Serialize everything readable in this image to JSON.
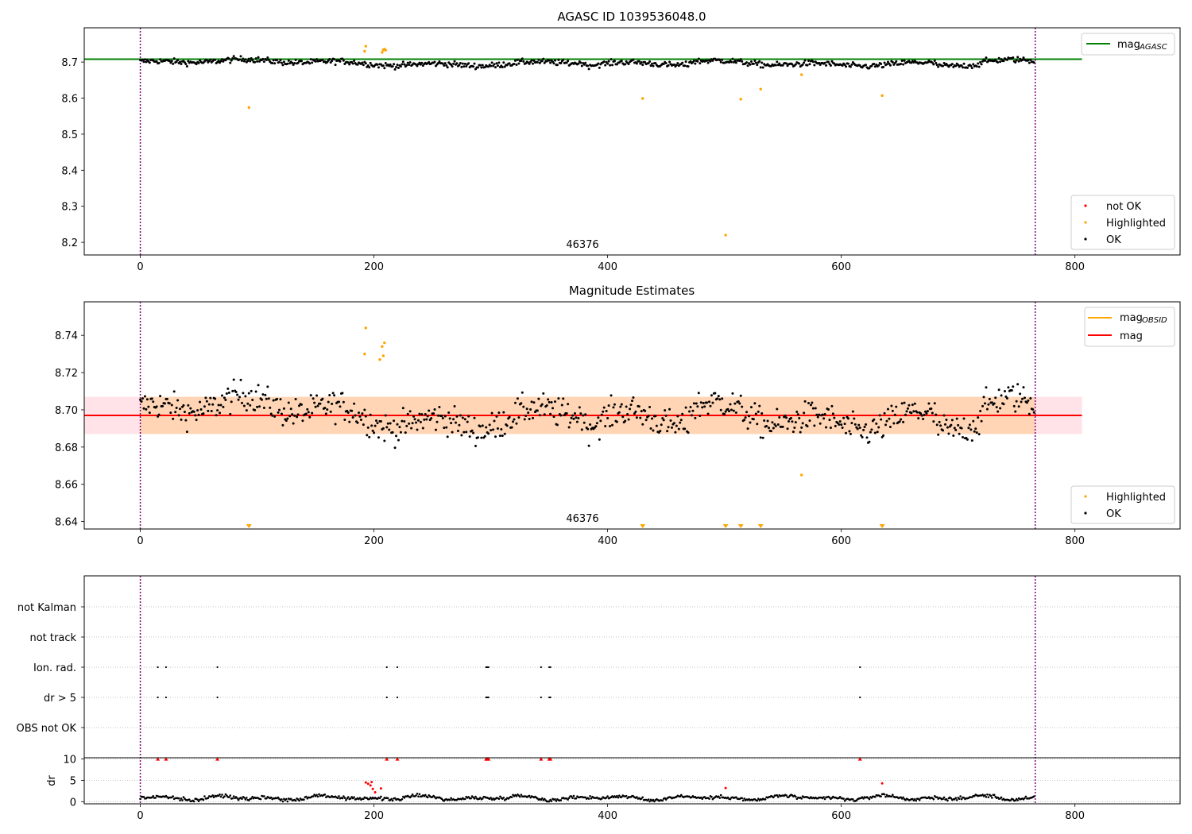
{
  "figure": {
    "obsid_label": "46376"
  },
  "chart_data": [
    {
      "type": "scatter",
      "title": "AGASC ID 1039536048.0",
      "xlabel": "",
      "ylabel": "",
      "xlim": [
        -48,
        890
      ],
      "ylim": [
        8.165,
        8.795
      ],
      "xticks": [
        0,
        200,
        400,
        600,
        800
      ],
      "yticks": [
        8.2,
        8.3,
        8.4,
        8.5,
        8.6,
        8.7
      ],
      "vlines": [
        0,
        766
      ],
      "vline_color": "#800080",
      "hline": {
        "name": "mag_AGASC",
        "y": 8.708,
        "x_range": [
          -48,
          806
        ],
        "color": "#008000"
      },
      "ok_series": {
        "name": "OK",
        "color": "#000000",
        "n": 766,
        "level": 8.698,
        "noise": 0.008
      },
      "highlighted": {
        "name": "Highlighted",
        "color": "#ffa500",
        "points": [
          [
            93,
            8.574
          ],
          [
            192,
            8.73
          ],
          [
            193,
            8.744
          ],
          [
            207,
            8.727
          ],
          [
            208,
            8.734
          ],
          [
            209,
            8.736
          ],
          [
            210,
            8.733
          ],
          [
            430,
            8.599
          ],
          [
            501,
            8.22
          ],
          [
            514,
            8.597
          ],
          [
            531,
            8.625
          ],
          [
            566,
            8.665
          ],
          [
            635,
            8.607
          ]
        ]
      },
      "not_ok": {
        "name": "not OK",
        "color": "#ff0000",
        "points": []
      },
      "legend_upper": {
        "position": "top-right",
        "entries": [
          {
            "name": "mag",
            "sub": "AGASC",
            "color": "#008000"
          }
        ]
      },
      "legend_lower": {
        "position": "bottom-right",
        "entries": [
          {
            "name": "not OK",
            "color": "#ff0000"
          },
          {
            "name": "Highlighted",
            "color": "#ffa500"
          },
          {
            "name": "OK",
            "color": "#000000"
          }
        ]
      }
    },
    {
      "type": "scatter",
      "title": "Magnitude Estimates",
      "xlabel": "",
      "ylabel": "",
      "xlim": [
        -48,
        890
      ],
      "ylim": [
        8.636,
        8.758
      ],
      "xticks": [
        0,
        200,
        400,
        600,
        800
      ],
      "yticks": [
        8.64,
        8.66,
        8.68,
        8.7,
        8.72,
        8.74
      ],
      "vlines": [
        0,
        766
      ],
      "band_obsid": {
        "y": [
          8.687,
          8.707
        ],
        "x_range": [
          0,
          766
        ],
        "color": "#ffa500"
      },
      "band_mag": {
        "y": [
          8.687,
          8.707
        ],
        "x_range": [
          -48,
          806
        ],
        "color": "#ffc0cb"
      },
      "line_obsid": {
        "name": "mag_OBSID",
        "y": 8.697,
        "x_range": [
          0,
          766
        ],
        "color": "#ffa500"
      },
      "line_mag": {
        "name": "mag",
        "y": 8.697,
        "x_range": [
          -48,
          806
        ],
        "color": "#ff0000"
      },
      "highlighted": {
        "name": "Highlighted",
        "color": "#ffa500",
        "points": [
          [
            192,
            8.73
          ],
          [
            193,
            8.744
          ],
          [
            205,
            8.727
          ],
          [
            207,
            8.734
          ],
          [
            208,
            8.729
          ],
          [
            209,
            8.736
          ],
          [
            566,
            8.665
          ]
        ]
      },
      "off_scale_markers_x": [
        93,
        430,
        501,
        514,
        531,
        635
      ],
      "legend_upper": {
        "position": "top-right",
        "entries": [
          {
            "name": "mag",
            "sub": "OBSID",
            "color": "#ffa500"
          },
          {
            "name": "mag",
            "sub": "",
            "color": "#ff0000"
          }
        ]
      },
      "legend_lower": {
        "position": "bottom-right",
        "entries": [
          {
            "name": "Highlighted",
            "color": "#ffa500"
          },
          {
            "name": "OK",
            "color": "#000000"
          }
        ]
      }
    },
    {
      "type": "scatter",
      "title": "",
      "xlabel": "",
      "ylabel": "",
      "xlim": [
        -48,
        890
      ],
      "categories": [
        "not Kalman",
        "not track",
        "Ion. rad.",
        "dr > 5",
        "OBS not OK"
      ],
      "flag_x": [
        15,
        22,
        66,
        211,
        220,
        296,
        297,
        298,
        343,
        350,
        351,
        616
      ],
      "flags": {
        "Ion. rad.": true,
        "dr > 5": true
      }
    },
    {
      "type": "scatter",
      "title": "",
      "xlabel": "",
      "ylabel": "dr",
      "xlim": [
        -48,
        890
      ],
      "ylim": [
        -0.5,
        10.3
      ],
      "xticks": [
        0,
        200,
        400,
        600,
        800
      ],
      "yticks": [
        0,
        5,
        10
      ],
      "clipped_x": [
        15,
        22,
        66,
        211,
        220,
        296,
        297,
        298,
        343,
        350,
        351,
        616
      ],
      "clipped_color": "#ff0000",
      "red_points": [
        [
          193,
          4.5
        ],
        [
          195,
          4.2
        ],
        [
          197,
          3.8
        ],
        [
          198,
          4.6
        ],
        [
          199,
          3.0
        ],
        [
          201,
          2.2
        ],
        [
          206,
          3.1
        ],
        [
          501,
          3.2
        ],
        [
          635,
          4.3
        ]
      ],
      "ok_series": {
        "name": "OK",
        "color": "#000000",
        "n": 766,
        "level": 0.9,
        "noise": 0.4
      }
    }
  ]
}
